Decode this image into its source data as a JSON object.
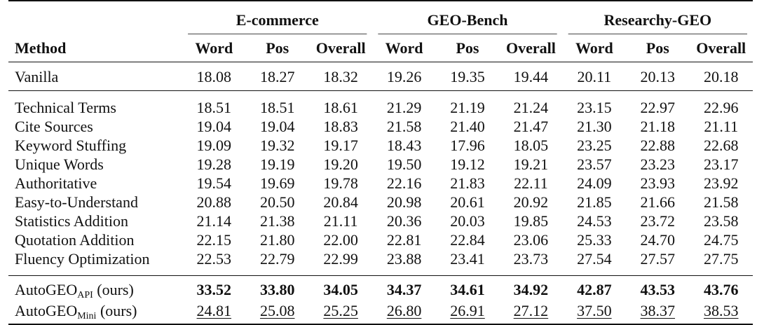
{
  "columns": {
    "method": "Method",
    "groups": [
      "E-commerce",
      "GEO-Bench",
      "Researchy-GEO"
    ],
    "metrics": [
      "Word",
      "Pos",
      "Overall"
    ]
  },
  "baseline": {
    "method": "Vanilla",
    "values": [
      "18.08",
      "18.27",
      "18.32",
      "19.26",
      "19.35",
      "19.44",
      "20.11",
      "20.13",
      "20.18"
    ]
  },
  "strategies": [
    {
      "method": "Technical Terms",
      "values": [
        "18.51",
        "18.51",
        "18.61",
        "21.29",
        "21.19",
        "21.24",
        "23.15",
        "22.97",
        "22.96"
      ]
    },
    {
      "method": "Cite Sources",
      "values": [
        "19.04",
        "19.04",
        "18.83",
        "21.58",
        "21.40",
        "21.47",
        "21.30",
        "21.18",
        "21.11"
      ]
    },
    {
      "method": "Keyword Stuffing",
      "values": [
        "19.09",
        "19.32",
        "19.17",
        "18.43",
        "17.96",
        "18.05",
        "23.25",
        "22.88",
        "22.68"
      ]
    },
    {
      "method": "Unique Words",
      "values": [
        "19.28",
        "19.19",
        "19.20",
        "19.50",
        "19.12",
        "19.21",
        "23.57",
        "23.23",
        "23.17"
      ]
    },
    {
      "method": "Authoritative",
      "values": [
        "19.54",
        "19.69",
        "19.78",
        "22.16",
        "21.83",
        "22.11",
        "24.09",
        "23.93",
        "23.92"
      ]
    },
    {
      "method": "Easy-to-Understand",
      "values": [
        "20.88",
        "20.50",
        "20.84",
        "20.98",
        "20.61",
        "20.92",
        "21.85",
        "21.66",
        "21.58"
      ]
    },
    {
      "method": "Statistics Addition",
      "values": [
        "21.14",
        "21.38",
        "21.11",
        "20.36",
        "20.03",
        "19.85",
        "24.53",
        "23.72",
        "23.58"
      ]
    },
    {
      "method": "Quotation Addition",
      "values": [
        "22.15",
        "21.80",
        "22.00",
        "22.81",
        "22.84",
        "23.06",
        "25.33",
        "24.70",
        "24.75"
      ]
    },
    {
      "method": "Fluency Optimization",
      "values": [
        "22.53",
        "22.79",
        "22.99",
        "23.88",
        "23.41",
        "23.73",
        "27.54",
        "27.57",
        "27.75"
      ]
    }
  ],
  "ours": [
    {
      "method_base": "AutoGEO",
      "method_sub": "API",
      "method_suffix": " (ours)",
      "style": "bold",
      "values": [
        "33.52",
        "33.80",
        "34.05",
        "34.37",
        "34.61",
        "34.92",
        "42.87",
        "43.53",
        "43.76"
      ]
    },
    {
      "method_base": "AutoGEO",
      "method_sub": "Mini",
      "method_suffix": " (ours)",
      "style": "underline",
      "values": [
        "24.81",
        "25.08",
        "25.25",
        "26.80",
        "26.91",
        "27.12",
        "37.50",
        "38.37",
        "38.53"
      ]
    }
  ]
}
